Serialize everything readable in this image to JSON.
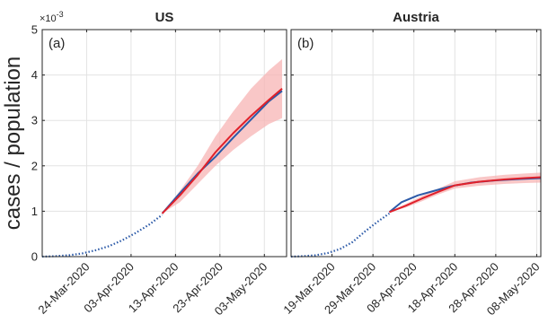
{
  "chart_data": [
    {
      "type": "line",
      "panel_label": "(a)",
      "title": "US",
      "ylabel": "cases / population",
      "y_multiplier": "×10",
      "y_exponent": "-3",
      "ylim": [
        0,
        5
      ],
      "yticks": [
        0,
        1,
        2,
        3,
        4,
        5
      ],
      "x_axis": "date",
      "xlim": [
        "2020-03-14",
        "2020-05-08"
      ],
      "xticks": [
        "2020-03-24",
        "2020-04-03",
        "2020-04-13",
        "2020-04-23",
        "2020-05-03"
      ],
      "xtick_labels": [
        "24-Mar-2020",
        "03-Apr-2020",
        "13-Apr-2020",
        "23-Apr-2020",
        "03-May-2020"
      ],
      "grid": true,
      "colors": {
        "observed": "#2c5aa8",
        "model": "#e0202a",
        "band": "#f7b4b4"
      },
      "series": [
        {
          "style": "dotted",
          "color": "#2c5aa8",
          "x": [
            "2020-03-14",
            "2020-03-17",
            "2020-03-20",
            "2020-03-23",
            "2020-03-26",
            "2020-03-29",
            "2020-04-01",
            "2020-04-04",
            "2020-04-07",
            "2020-04-10"
          ],
          "y": [
            0,
            0.01,
            0.03,
            0.07,
            0.14,
            0.23,
            0.36,
            0.52,
            0.7,
            0.92
          ]
        },
        {
          "style": "solid",
          "color": "#2c5aa8",
          "x": [
            "2020-04-10",
            "2020-04-14",
            "2020-04-18",
            "2020-04-22",
            "2020-04-26",
            "2020-04-30",
            "2020-05-04",
            "2020-05-07"
          ],
          "y": [
            0.95,
            1.4,
            1.83,
            2.2,
            2.62,
            3.02,
            3.42,
            3.65
          ]
        },
        {
          "style": "solid",
          "color": "#e0202a",
          "x": [
            "2020-04-10",
            "2020-04-14",
            "2020-04-18",
            "2020-04-22",
            "2020-04-26",
            "2020-04-30",
            "2020-05-04",
            "2020-05-07"
          ],
          "y": [
            0.95,
            1.35,
            1.8,
            2.3,
            2.72,
            3.1,
            3.45,
            3.7
          ]
        }
      ],
      "band": {
        "x": [
          "2020-04-10",
          "2020-04-14",
          "2020-04-18",
          "2020-04-22",
          "2020-04-26",
          "2020-04-30",
          "2020-05-04",
          "2020-05-07"
        ],
        "lower": [
          0.95,
          1.2,
          1.6,
          2.0,
          2.35,
          2.65,
          2.92,
          3.05
        ],
        "upper": [
          0.95,
          1.45,
          2.0,
          2.65,
          3.2,
          3.7,
          4.1,
          4.35
        ]
      }
    },
    {
      "type": "line",
      "panel_label": "(b)",
      "title": "Austria",
      "ylim": [
        0,
        5
      ],
      "yticks": [
        0,
        1,
        2,
        3,
        4,
        5
      ],
      "x_axis": "date",
      "xlim": [
        "2020-03-09",
        "2020-05-09"
      ],
      "xticks": [
        "2020-03-19",
        "2020-03-29",
        "2020-04-08",
        "2020-04-18",
        "2020-04-28",
        "2020-05-08"
      ],
      "xtick_labels": [
        "19-Mar-2020",
        "29-Mar-2020",
        "08-Apr-2020",
        "18-Apr-2020",
        "28-Apr-2020",
        "08-May-2020"
      ],
      "grid": true,
      "colors": {
        "observed": "#2c5aa8",
        "model": "#e0202a",
        "band": "#f7b4b4"
      },
      "series": [
        {
          "style": "dotted",
          "color": "#2c5aa8",
          "x": [
            "2020-03-09",
            "2020-03-12",
            "2020-03-15",
            "2020-03-18",
            "2020-03-21",
            "2020-03-24",
            "2020-03-27",
            "2020-03-30",
            "2020-04-02"
          ],
          "y": [
            0,
            0.01,
            0.03,
            0.08,
            0.17,
            0.32,
            0.55,
            0.76,
            0.95
          ]
        },
        {
          "style": "solid",
          "color": "#2c5aa8",
          "x": [
            "2020-04-02",
            "2020-04-05",
            "2020-04-09",
            "2020-04-13",
            "2020-04-17",
            "2020-04-22",
            "2020-04-28",
            "2020-05-04",
            "2020-05-09"
          ],
          "y": [
            0.98,
            1.2,
            1.35,
            1.45,
            1.55,
            1.63,
            1.68,
            1.71,
            1.73
          ]
        },
        {
          "style": "solid",
          "color": "#e0202a",
          "x": [
            "2020-04-02",
            "2020-04-06",
            "2020-04-10",
            "2020-04-14",
            "2020-04-18",
            "2020-04-24",
            "2020-04-30",
            "2020-05-05",
            "2020-05-09"
          ],
          "y": [
            0.98,
            1.12,
            1.28,
            1.43,
            1.57,
            1.65,
            1.7,
            1.73,
            1.75
          ]
        }
      ],
      "band": {
        "x": [
          "2020-04-02",
          "2020-04-06",
          "2020-04-10",
          "2020-04-14",
          "2020-04-18",
          "2020-04-24",
          "2020-04-30",
          "2020-05-05",
          "2020-05-09"
        ],
        "lower": [
          0.98,
          1.08,
          1.22,
          1.37,
          1.5,
          1.56,
          1.6,
          1.62,
          1.63
        ],
        "upper": [
          0.98,
          1.16,
          1.34,
          1.5,
          1.66,
          1.75,
          1.8,
          1.83,
          1.85
        ]
      }
    }
  ]
}
